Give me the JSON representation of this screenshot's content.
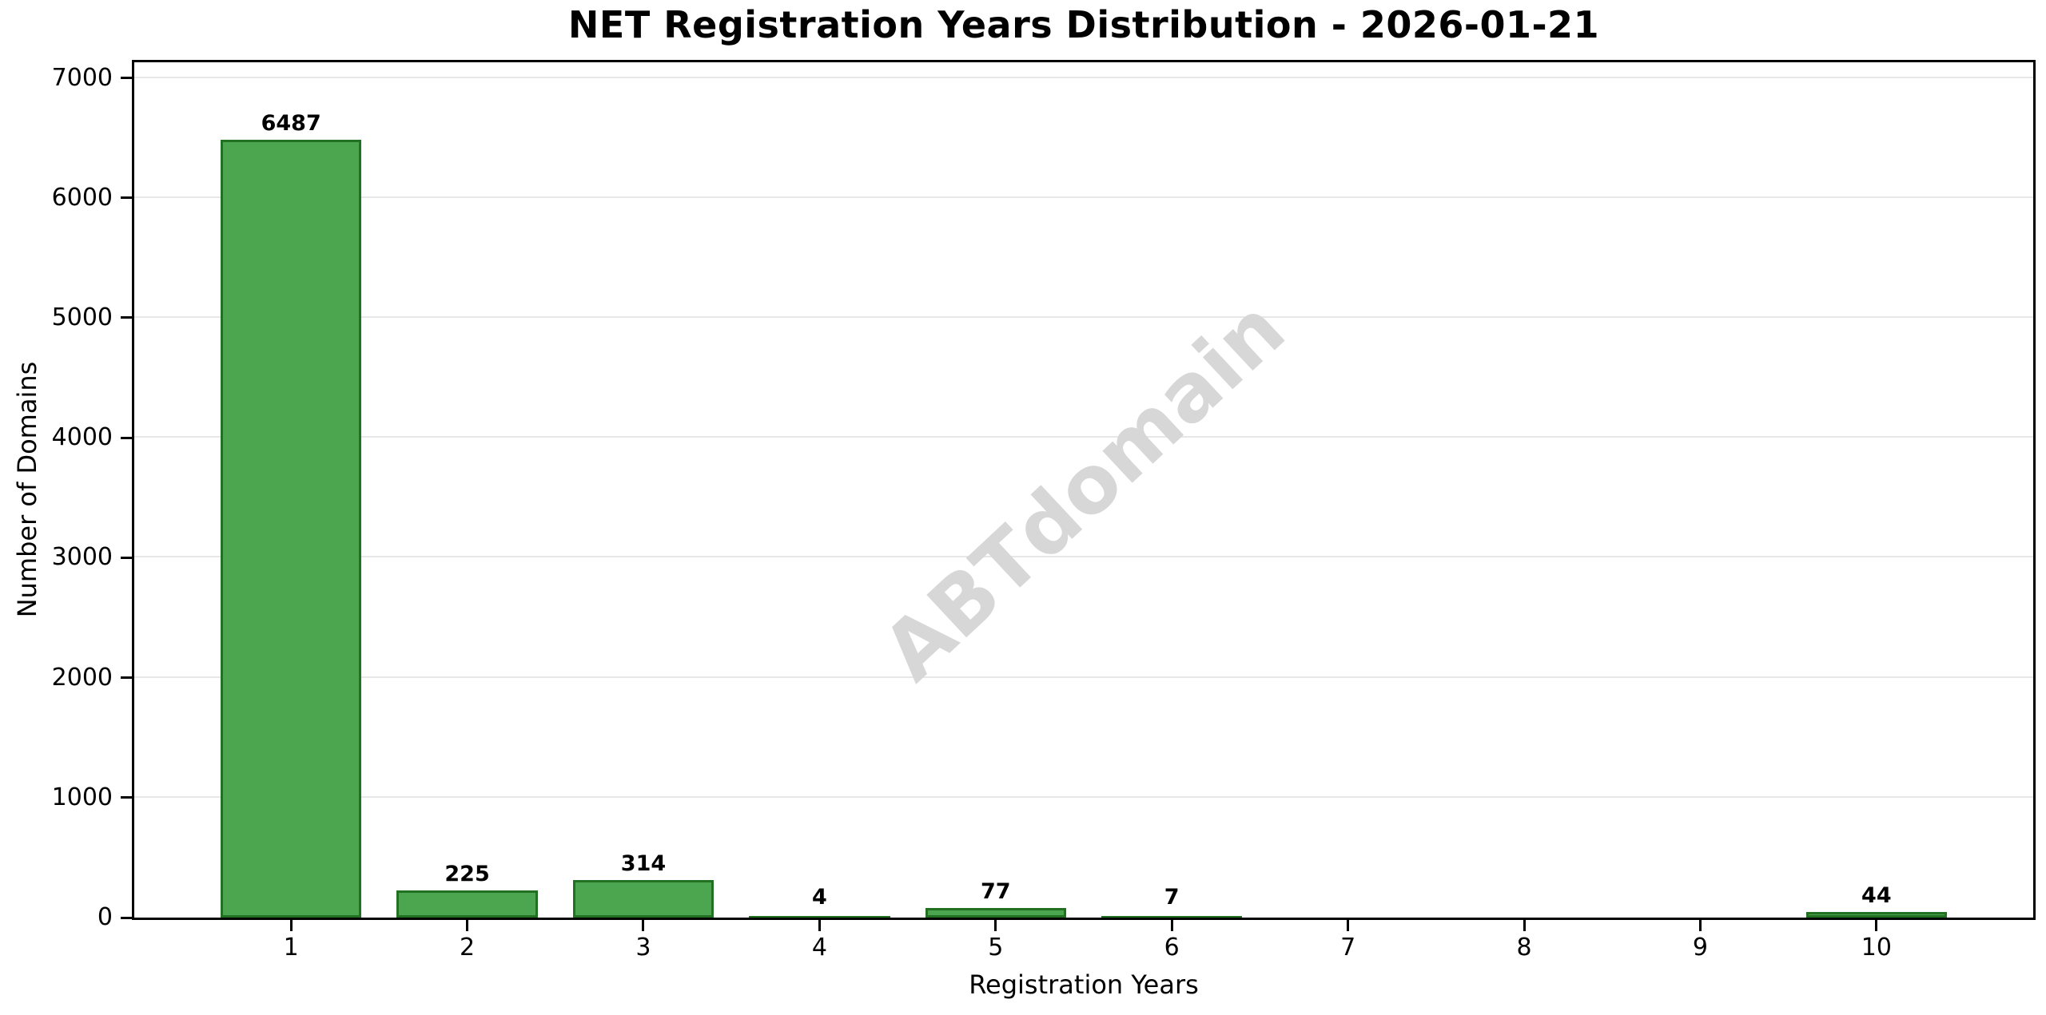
{
  "chart_data": {
    "type": "bar",
    "title": "NET Registration Years Distribution - 2026-01-21",
    "xlabel": "Registration Years",
    "ylabel": "Number of Domains",
    "watermark": "ABTdomain",
    "categories": [
      1,
      2,
      3,
      4,
      5,
      6,
      7,
      8,
      9,
      10
    ],
    "values": [
      6487,
      225,
      314,
      4,
      77,
      7,
      0,
      0,
      0,
      44
    ],
    "yticks": [
      0,
      1000,
      2000,
      3000,
      4000,
      5000,
      6000,
      7000
    ],
    "ylim": [
      0,
      7130
    ],
    "xlim": [
      0.11,
      10.89
    ],
    "bar_width": 0.8,
    "bar_color": "#4ba64f",
    "bar_edge_color": "#227022",
    "grid_color": "#e7e7e7",
    "grid": "horizontal",
    "legend_position": "none"
  }
}
